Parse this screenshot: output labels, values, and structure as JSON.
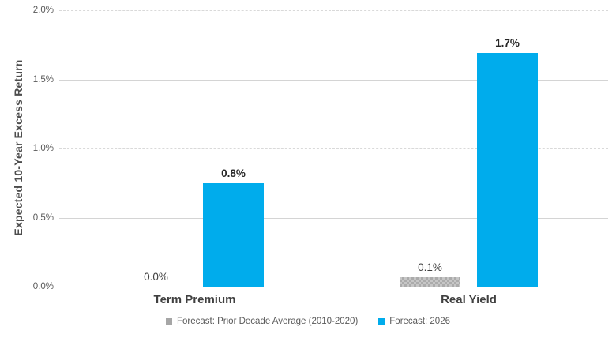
{
  "chart_data": {
    "type": "bar",
    "title": "",
    "xlabel": "",
    "ylabel": "Expected 10-Year Excess Return",
    "categories": [
      "Term Premium",
      "Real Yield"
    ],
    "series": [
      {
        "name": "Forecast: Prior Decade Average (2010-2020)",
        "values": [
          0.0,
          0.1
        ],
        "plot_values": [
          0.0,
          0.07
        ],
        "data_labels": [
          "0.0%",
          "0.1%"
        ],
        "color": "#a6a6a6",
        "fill_pattern": "checkerboard",
        "label_weight": "normal"
      },
      {
        "name": "Forecast: 2026",
        "values": [
          0.8,
          1.7
        ],
        "plot_values": [
          0.75,
          1.69
        ],
        "data_labels": [
          "0.8%",
          "1.7%"
        ],
        "color": "#00acec",
        "fill_pattern": "solid",
        "label_weight": "bold"
      }
    ],
    "ylim": [
      0,
      2.0
    ],
    "y_ticks": [
      {
        "value": 0.0,
        "label": "0.0%",
        "grid": "dashed"
      },
      {
        "value": 0.5,
        "label": "0.5%",
        "grid": "solid"
      },
      {
        "value": 1.0,
        "label": "1.0%",
        "grid": "dashed"
      },
      {
        "value": 1.5,
        "label": "1.5%",
        "grid": "solid"
      },
      {
        "value": 2.0,
        "label": "2.0%",
        "grid": "dashed"
      }
    ],
    "grid": true,
    "legend_position": "bottom",
    "colors": {
      "grid_line": "#d9d9d9",
      "axis_tick_text": "#595959",
      "axis_title_text": "#4d4d4d",
      "category_text": "#404040",
      "data_label_text": "#262626",
      "checker_dark": "#ababab",
      "checker_light": "#c6c6c6",
      "background": "#ffffff"
    }
  }
}
